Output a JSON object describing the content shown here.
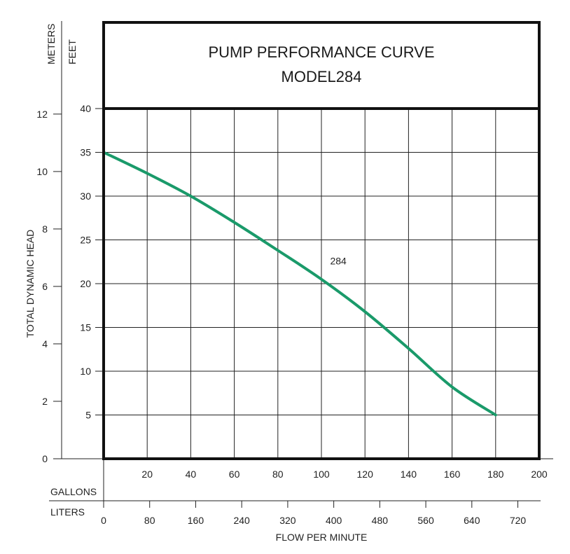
{
  "chart_data": {
    "type": "line",
    "title": "PUMP PERFORMANCE CURVE",
    "subtitle": "MODEL284",
    "ylabel": "TOTAL DYNAMIC HEAD",
    "xlabel": "FLOW PER MINUTE",
    "y_unit_meters": "METERS",
    "y_unit_feet": "FEET",
    "x_unit_gallons": "GALLONS",
    "x_unit_liters": "LITERS",
    "feet_ticks": [
      "5",
      "10",
      "15",
      "20",
      "25",
      "30",
      "35",
      "40"
    ],
    "meters_ticks": [
      "0",
      "2",
      "4",
      "6",
      "8",
      "10",
      "12"
    ],
    "gallons_ticks": [
      "20",
      "40",
      "60",
      "80",
      "100",
      "120",
      "140",
      "160",
      "180",
      "200"
    ],
    "liters_ticks": [
      "0",
      "80",
      "160",
      "240",
      "320",
      "400",
      "480",
      "560",
      "640",
      "720"
    ],
    "xlim_gallons": [
      0,
      200
    ],
    "ylim_feet": [
      0,
      40
    ],
    "grid": true,
    "series": [
      {
        "name": "284",
        "color": "#1a9a6a",
        "x": [
          0,
          20,
          40,
          60,
          80,
          100,
          120,
          140,
          160,
          180
        ],
        "y": [
          35,
          32.6,
          30,
          27,
          23.8,
          20.5,
          16.8,
          12.6,
          8.2,
          5
        ]
      }
    ]
  }
}
